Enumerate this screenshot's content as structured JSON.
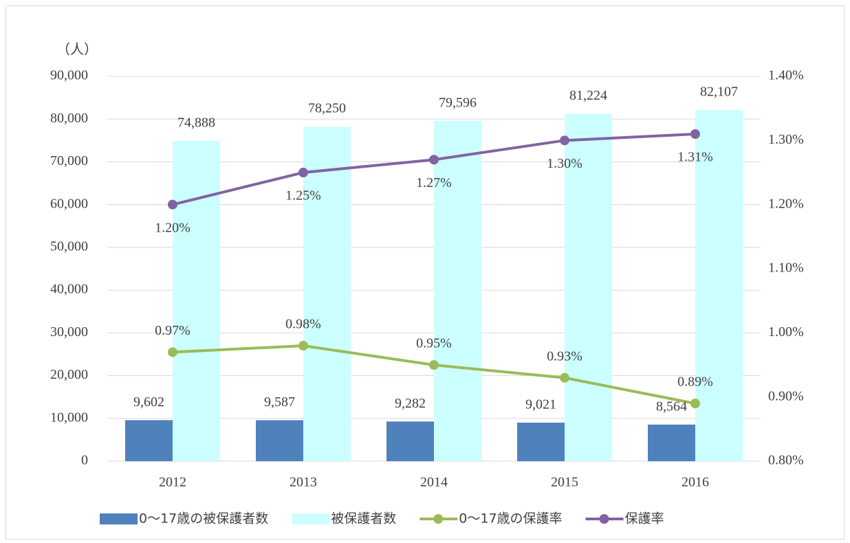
{
  "chart_data": {
    "type": "bar-line",
    "y_unit_label": "（人）",
    "categories": [
      "2012",
      "2013",
      "2014",
      "2015",
      "2016"
    ],
    "series": [
      {
        "name": "0〜17歳の被保護者数",
        "type": "bar",
        "color": "#4f81bd",
        "values": [
          9602,
          9587,
          9282,
          9021,
          8564
        ],
        "value_labels": [
          "9,602",
          "9,587",
          "9,282",
          "9,021",
          "8,564"
        ]
      },
      {
        "name": "被保護者数",
        "type": "bar",
        "color": "#ccffff",
        "values": [
          74888,
          78250,
          79596,
          81224,
          82107
        ],
        "value_labels": [
          "74,888",
          "78,250",
          "79,596",
          "81,224",
          "82,107"
        ]
      },
      {
        "name": "0〜17歳の保護率",
        "type": "line",
        "axis": "y2",
        "color": "#9bbb59",
        "values": [
          0.97,
          0.98,
          0.95,
          0.93,
          0.89
        ],
        "value_labels": [
          "0.97%",
          "0.98%",
          "0.95%",
          "0.93%",
          "0.89%"
        ]
      },
      {
        "name": "保護率",
        "type": "line",
        "axis": "y2",
        "color": "#8064a2",
        "values": [
          1.2,
          1.25,
          1.27,
          1.3,
          1.31
        ],
        "value_labels": [
          "1.20%",
          "1.25%",
          "1.27%",
          "1.30%",
          "1.31%"
        ]
      }
    ],
    "ylim": [
      0,
      90000
    ],
    "yticks": [
      0,
      {
        "value": 10000,
        "label": "10,000"
      },
      {
        "value": 20000,
        "label": "20,000"
      },
      {
        "value": 30000,
        "label": "30,000"
      },
      {
        "value": 40000,
        "label": "40,000"
      },
      {
        "value": 50000,
        "label": "50,000"
      },
      {
        "value": 60000,
        "label": "60,000"
      },
      {
        "value": 70000,
        "label": "70,000"
      },
      {
        "value": 80000,
        "label": "80,000"
      },
      {
        "value": 90000,
        "label": "90,000"
      }
    ],
    "y2lim": [
      0.8,
      1.4
    ],
    "y2ticks": [
      {
        "value": 0.8,
        "label": "0.80%"
      },
      {
        "value": 0.9,
        "label": "0.90%"
      },
      {
        "value": 1.0,
        "label": "1.00%"
      },
      {
        "value": 1.1,
        "label": "1.10%"
      },
      {
        "value": 1.2,
        "label": "1.20%"
      },
      {
        "value": 1.3,
        "label": "1.30%"
      },
      {
        "value": 1.4,
        "label": "1.40%"
      }
    ],
    "grid": true,
    "legend": "bottom"
  }
}
